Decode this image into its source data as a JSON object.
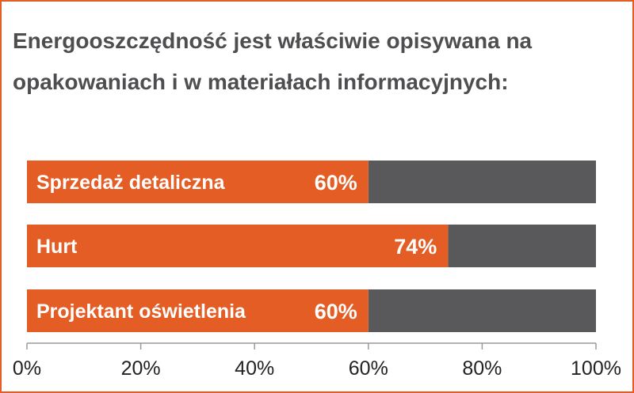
{
  "colors": {
    "accent": "#e35d24",
    "remainder": "#59585a",
    "text": "#4e4e50",
    "border": "#e35d24"
  },
  "chart_data": {
    "type": "bar",
    "orientation": "horizontal",
    "stacked_to_100": true,
    "title": "Energooszczędność jest właściwie opisywana na opakowaniach i w materiałach informacyjnych:",
    "categories": [
      "Sprzedaż detaliczna",
      "Hurt",
      "Projektant oświetlenia"
    ],
    "values": [
      60,
      74,
      60
    ],
    "value_labels": [
      "60%",
      "74%",
      "60%"
    ],
    "xlim": [
      0,
      100
    ],
    "x_ticks": [
      0,
      20,
      40,
      60,
      80,
      100
    ],
    "x_tick_labels": [
      "0%",
      "20%",
      "40%",
      "60%",
      "80%",
      "100%"
    ],
    "grid": false,
    "legend": "none"
  }
}
